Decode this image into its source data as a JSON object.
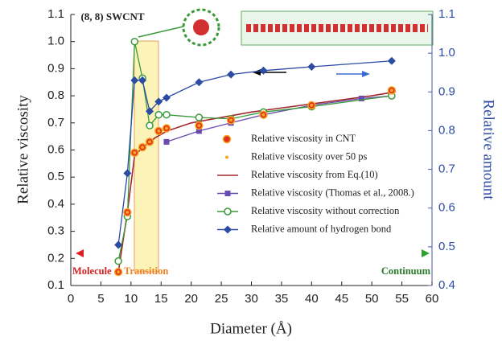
{
  "chart_data": {
    "type": "line",
    "x_label": "Diameter (Å)",
    "y_label": "Relative viscosity",
    "y2_label": "Relative amount",
    "annotation": "(8, 8) SWCNT",
    "regions": [
      "Molecule",
      "Transition",
      "Continuum"
    ],
    "xlim": [
      0,
      60
    ],
    "xticks": [
      0,
      5,
      10,
      15,
      20,
      25,
      30,
      35,
      40,
      45,
      50,
      55,
      60
    ],
    "ylim": [
      0.1,
      1.1
    ],
    "yticks": [
      0.1,
      0.2,
      0.3,
      0.4,
      0.5,
      0.6,
      0.7,
      0.8,
      0.9,
      {
        "value": 1,
        "label": "1.0"
      },
      1.1
    ],
    "y2lim": [
      0.4,
      1.1
    ],
    "y2ticks": [
      0.4,
      0.5,
      0.6,
      0.7,
      0.8,
      0.9,
      {
        "value": 1,
        "label": "1.0"
      },
      1.1
    ],
    "series": [
      {
        "name": "Relative viscosity in CNT",
        "color": "#e2301f",
        "marker": "circle",
        "x": [
          7.9,
          9.4,
          10.6,
          11.9,
          13.1,
          14.6,
          15.9,
          21.3,
          26.6,
          32,
          40,
          53.3
        ],
        "values": [
          0.15,
          0.37,
          0.59,
          0.61,
          0.63,
          0.67,
          0.68,
          0.69,
          0.71,
          0.73,
          0.765,
          0.82
        ]
      },
      {
        "name": "Relative viscosity over 50 ps",
        "color": "#f5a623",
        "marker": "dot",
        "x": [
          7.9,
          9.4,
          10.6,
          11.9,
          13.1,
          14.6,
          15.9,
          21.3,
          26.6,
          32,
          40,
          53.3
        ],
        "values": [
          0.15,
          0.37,
          0.59,
          0.61,
          0.63,
          0.67,
          0.68,
          0.69,
          0.71,
          0.73,
          0.765,
          0.82
        ]
      },
      {
        "name": "Relative viscosity from Eq.(10)",
        "color": "#a3282b",
        "marker": "none",
        "x": [
          7.9,
          9.4,
          10.6,
          12,
          14,
          16,
          20,
          25,
          30,
          35,
          40,
          45,
          50,
          54
        ],
        "values": [
          0.15,
          0.37,
          0.58,
          0.61,
          0.645,
          0.67,
          0.7,
          0.72,
          0.74,
          0.755,
          0.77,
          0.785,
          0.8,
          0.815
        ]
      },
      {
        "name": "Relative viscosity (Thomas et al., 2008.)",
        "color": "#6a4cb0",
        "marker": "square",
        "x": [
          15.9,
          21.3,
          26.6,
          32,
          40,
          48.3,
          53.3
        ],
        "values": [
          0.63,
          0.67,
          0.7,
          0.73,
          0.765,
          0.79,
          0.8
        ]
      },
      {
        "name": "Relative viscosity without correction",
        "color": "#3a9a3a",
        "marker": "open-circle",
        "x": [
          7.9,
          9.4,
          10.6,
          11.9,
          13.1,
          14.6,
          15.9,
          21.3,
          26.6,
          32,
          40,
          53.3
        ],
        "values": [
          0.19,
          0.355,
          1.0,
          0.865,
          0.69,
          0.73,
          0.73,
          0.72,
          0.715,
          0.74,
          0.76,
          0.8
        ]
      },
      {
        "name": "Relative amount of hydrogen bond",
        "color": "#2c4ba3",
        "marker": "diamond",
        "axis": "y2",
        "x": [
          7.9,
          9.4,
          10.6,
          11.9,
          13.1,
          14.6,
          15.9,
          21.3,
          26.6,
          32,
          40,
          53.3
        ],
        "values": [
          0.505,
          0.69,
          0.93,
          0.93,
          0.85,
          0.875,
          0.885,
          0.925,
          0.945,
          0.955,
          0.965,
          0.98
        ]
      }
    ]
  }
}
